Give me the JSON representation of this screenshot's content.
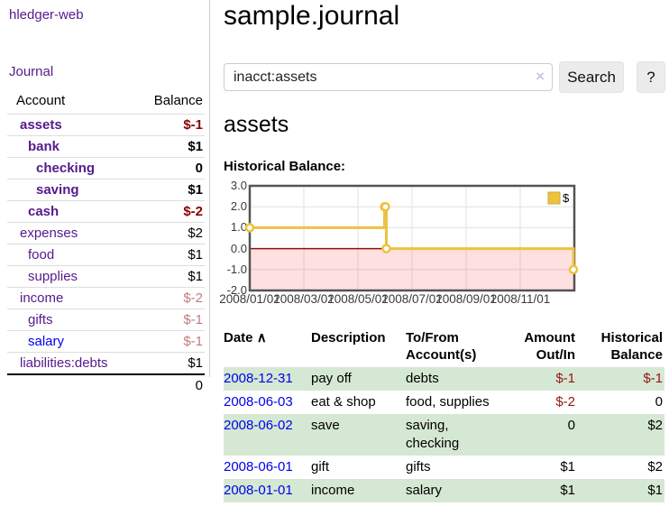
{
  "app": {
    "title": "hledger-web",
    "nav_journal": "Journal"
  },
  "colors": {
    "link_purple": "#551a8b",
    "link_blue": "#0000ee",
    "negative_strong": "#8b0000",
    "negative_soft": "#c17d7d",
    "row_green": "#d5e8d3",
    "series_gold": "#edc240"
  },
  "sidebar": {
    "headers": {
      "account": "Account",
      "balance": "Balance"
    },
    "accounts": [
      {
        "name": "assets",
        "balance": "$-1"
      },
      {
        "name": "bank",
        "balance": "$1"
      },
      {
        "name": "checking",
        "balance": "0"
      },
      {
        "name": "saving",
        "balance": "$1"
      },
      {
        "name": "cash",
        "balance": "$-2"
      },
      {
        "name": "expenses",
        "balance": "$2"
      },
      {
        "name": "food",
        "balance": "$1"
      },
      {
        "name": "supplies",
        "balance": "$1"
      },
      {
        "name": "income",
        "balance": "$-2"
      },
      {
        "name": "gifts",
        "balance": "$-1"
      },
      {
        "name": "salary",
        "balance": "$-1"
      },
      {
        "name": "liabilities:debts",
        "balance": "$1"
      }
    ],
    "total": "0"
  },
  "main": {
    "title": "sample.journal",
    "search": {
      "value": "inacct:assets",
      "clear_icon": "×",
      "button_label": "Search",
      "help_label": "?"
    },
    "account_heading": "assets",
    "chart_label": "Historical Balance:"
  },
  "chart_data": {
    "type": "line",
    "title": "Historical Balance:",
    "series": [
      {
        "name": "$",
        "color": "#edc240",
        "step": true,
        "points": [
          {
            "date": "2008-01-01",
            "value": 1
          },
          {
            "date": "2008-06-01",
            "value": 2
          },
          {
            "date": "2008-06-02",
            "value": 2
          },
          {
            "date": "2008-06-03",
            "value": 0
          },
          {
            "date": "2008-12-31",
            "value": -1
          }
        ]
      }
    ],
    "x_ticks": [
      "2008/01/01",
      "2008/03/01",
      "2008/05/01",
      "2008/07/01",
      "2008/09/01",
      "2008/11/01"
    ],
    "y_ticks": [
      3.0,
      2.0,
      1.0,
      0.0,
      -1.0,
      -2.0
    ],
    "ylim": [
      -2,
      3
    ],
    "x_span_days": 366,
    "grid": true,
    "legend_position": "top-right",
    "negative_region_fill": "rgba(255,60,60,0.16)",
    "zero_line_color": "#8b1010",
    "border_color": "#545454",
    "grid_color": "#e0e0e0"
  },
  "register": {
    "headers": {
      "date": "Date",
      "description": "Description",
      "accounts": "To/From Account(s)",
      "amount": "Amount Out/In",
      "balance": "Historical Balance"
    },
    "sort_icon": "∧",
    "rows": [
      {
        "date": "2008-12-31",
        "description": "pay off",
        "accounts": "debts",
        "amount": "$-1",
        "balance": "$-1"
      },
      {
        "date": "2008-06-03",
        "description": "eat & shop",
        "accounts": "food, supplies",
        "amount": "$-2",
        "balance": "0"
      },
      {
        "date": "2008-06-02",
        "description": "save",
        "accounts": "saving, checking",
        "amount": "0",
        "balance": "$2"
      },
      {
        "date": "2008-06-01",
        "description": "gift",
        "accounts": "gifts",
        "amount": "$1",
        "balance": "$2"
      },
      {
        "date": "2008-01-01",
        "description": "income",
        "accounts": "salary",
        "amount": "$1",
        "balance": "$1"
      }
    ]
  }
}
